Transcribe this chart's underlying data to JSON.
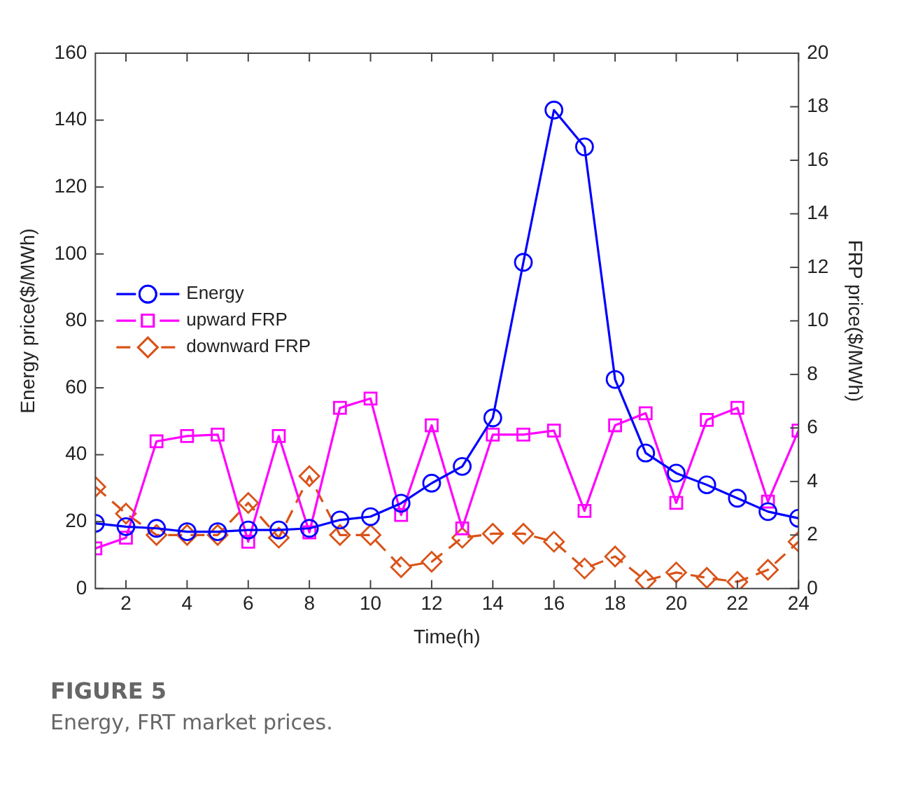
{
  "chart_data": {
    "type": "line",
    "xlabel": "Time(h)",
    "ylabel": "Energy price($/MWh)",
    "y2label": "FRP price($/MWh)",
    "annotations": [
      "FIGURE 5",
      "Energy, FRT market prices."
    ],
    "x": [
      1,
      2,
      3,
      4,
      5,
      6,
      7,
      8,
      9,
      10,
      11,
      12,
      13,
      14,
      15,
      16,
      17,
      18,
      19,
      20,
      21,
      22,
      23,
      24
    ],
    "series": [
      {
        "name": "Energy",
        "color": "#0000ff",
        "marker": "circle",
        "line_style": "solid",
        "values": [
          19.5,
          18.5,
          18,
          17,
          17,
          17.5,
          17.5,
          18,
          20.5,
          21.5,
          25.5,
          31.5,
          36.5,
          51,
          97.5,
          143,
          132,
          62.5,
          40.5,
          34.5,
          31,
          27,
          23,
          21
        ]
      },
      {
        "name": "upward FRP",
        "color": "#ff00ff",
        "marker": "square",
        "line_style": "solid",
        "axis": "y2",
        "values": [
          1.5,
          1.9,
          5.5,
          5.7,
          5.75,
          1.75,
          5.7,
          2.1,
          6.75,
          7.1,
          2.75,
          6.1,
          2.25,
          5.75,
          5.75,
          5.9,
          2.9,
          6.1,
          6.55,
          3.2,
          6.3,
          6.75,
          3.25,
          5.9
        ]
      },
      {
        "name": "downward FRP",
        "color": "#d95319",
        "marker": "diamond",
        "line_style": "dashed",
        "axis": "y2",
        "values": [
          3.8,
          2.8,
          2.0,
          2.0,
          2.0,
          3.2,
          1.9,
          4.2,
          2.0,
          2.0,
          0.8,
          1.0,
          1.9,
          2.05,
          2.05,
          1.75,
          0.75,
          1.2,
          0.3,
          0.6,
          0.4,
          0.25,
          0.7,
          1.75
        ]
      }
    ],
    "xlim": [
      1,
      24
    ],
    "xticks": [
      2,
      4,
      6,
      8,
      10,
      12,
      14,
      16,
      18,
      20,
      22,
      24
    ],
    "ylim": [
      0,
      160
    ],
    "yticks": [
      0,
      20,
      40,
      60,
      80,
      100,
      120,
      140,
      160
    ],
    "y2lim": [
      0,
      20
    ],
    "y2ticks": [
      0,
      2,
      4,
      6,
      8,
      10,
      12,
      14,
      16,
      18,
      20
    ],
    "grid": false,
    "legend": "left"
  }
}
